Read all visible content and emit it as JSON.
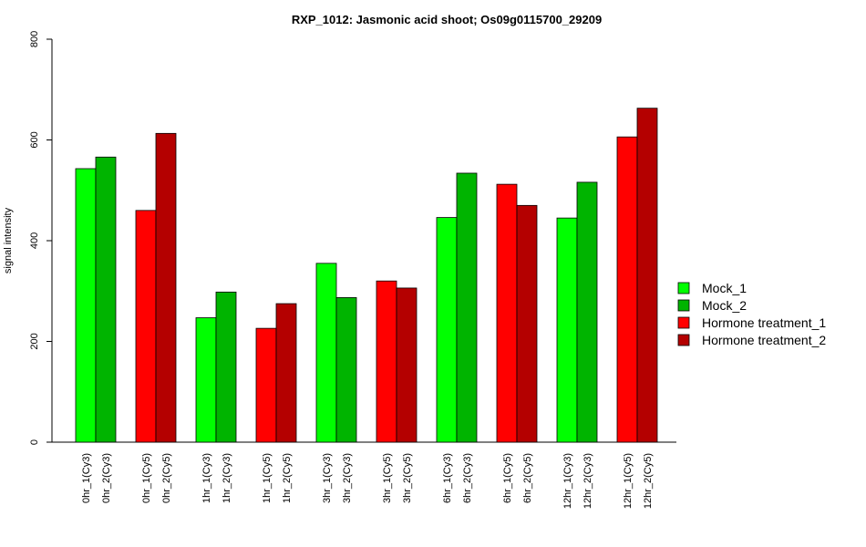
{
  "chart_data": {
    "type": "bar",
    "title": "RXP_1012: Jasmonic acid shoot; Os09g0115700_29209",
    "xlabel": "",
    "ylabel": "signal intensity",
    "ylim": [
      0,
      800
    ],
    "yticks": [
      0,
      200,
      400,
      600,
      800
    ],
    "grid": false,
    "legend_position": "right",
    "bars": [
      {
        "label": "0hr_1(Cy3)",
        "value": 543,
        "series": "Mock_1"
      },
      {
        "label": "0hr_2(Cy3)",
        "value": 566,
        "series": "Mock_2"
      },
      {
        "label": "0hr_1(Cy5)",
        "value": 460,
        "series": "Hormone treatment_1"
      },
      {
        "label": "0hr_2(Cy5)",
        "value": 613,
        "series": "Hormone treatment_2"
      },
      {
        "label": "1hr_1(Cy3)",
        "value": 247,
        "series": "Mock_1"
      },
      {
        "label": "1hr_2(Cy3)",
        "value": 298,
        "series": "Mock_2"
      },
      {
        "label": "1hr_1(Cy5)",
        "value": 226,
        "series": "Hormone treatment_1"
      },
      {
        "label": "1hr_2(Cy5)",
        "value": 275,
        "series": "Hormone treatment_2"
      },
      {
        "label": "3hr_1(Cy3)",
        "value": 355,
        "series": "Mock_1"
      },
      {
        "label": "3hr_2(Cy3)",
        "value": 287,
        "series": "Mock_2"
      },
      {
        "label": "3hr_1(Cy5)",
        "value": 320,
        "series": "Hormone treatment_1"
      },
      {
        "label": "3hr_2(Cy5)",
        "value": 306,
        "series": "Hormone treatment_2"
      },
      {
        "label": "6hr_1(Cy3)",
        "value": 446,
        "series": "Mock_1"
      },
      {
        "label": "6hr_2(Cy3)",
        "value": 534,
        "series": "Mock_2"
      },
      {
        "label": "6hr_1(Cy5)",
        "value": 512,
        "series": "Hormone treatment_1"
      },
      {
        "label": "6hr_2(Cy5)",
        "value": 470,
        "series": "Hormone treatment_2"
      },
      {
        "label": "12hr_1(Cy3)",
        "value": 445,
        "series": "Mock_1"
      },
      {
        "label": "12hr_2(Cy3)",
        "value": 516,
        "series": "Mock_2"
      },
      {
        "label": "12hr_1(Cy5)",
        "value": 606,
        "series": "Hormone treatment_1"
      },
      {
        "label": "12hr_2(Cy5)",
        "value": 663,
        "series": "Hormone treatment_2"
      }
    ],
    "legend": [
      {
        "name": "Mock_1",
        "color": "#00ff00"
      },
      {
        "name": "Mock_2",
        "color": "#00b400"
      },
      {
        "name": "Hormone treatment_1",
        "color": "#ff0000"
      },
      {
        "name": "Hormone treatment_2",
        "color": "#b40000"
      }
    ]
  }
}
